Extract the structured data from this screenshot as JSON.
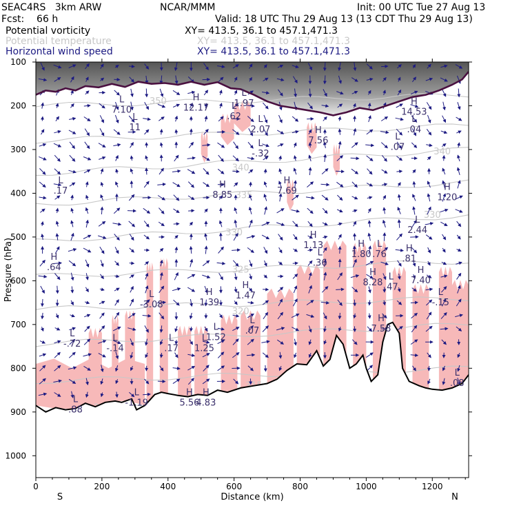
{
  "header": {
    "project": "SEAC4RS   3km ARW",
    "org": "NCAR/MMM",
    "init": "Init: 00 UTC Tue 27 Aug 13",
    "fcst": "Fcst:    66 h",
    "valid": "Valid: 18 UTC Thu 29 Aug 13 (13 CDT Thu 29 Aug 13)",
    "fields": [
      {
        "name": "Potential vorticity",
        "xy": "XY= 413.5, 36.1 to 457.1,471.3"
      },
      {
        "name": "Potential temperature",
        "xy": "XY= 413.5, 36.1 to 457.1,471.3"
      },
      {
        "name": "Horizontal wind speed",
        "xy": "XY= 413.5, 36.1 to 457.1,471.3"
      }
    ]
  },
  "colors": {
    "pv_fill": "#f7b9b9",
    "theta": "#c8c8c8",
    "wind": "#1c1a82",
    "label": "#3a2f6b",
    "tropopause": "#4a1040",
    "terrain": "#000000"
  },
  "chart_data": {
    "type": "cross-section",
    "xlabel": "Distance (km)",
    "ylabel": "Pressure (hPa)",
    "xlim": [
      0,
      1310
    ],
    "ylim": [
      1050,
      100
    ],
    "x_ticks": [
      0,
      200,
      400,
      600,
      800,
      1000,
      1200
    ],
    "y_ticks": [
      100,
      200,
      300,
      400,
      500,
      600,
      700,
      800,
      900,
      1000
    ],
    "end_labels": {
      "left": "S",
      "right": "N"
    },
    "grid": false,
    "theta_contours": [
      {
        "label": "310",
        "x": 200,
        "y": 890
      },
      {
        "label": "315",
        "x": 660,
        "y": 840
      },
      {
        "label": "320",
        "x": 620,
        "y": 670
      },
      {
        "label": "325",
        "x": 620,
        "y": 575
      },
      {
        "label": "330",
        "x": 600,
        "y": 490
      },
      {
        "label": "330",
        "x": 1200,
        "y": 450
      },
      {
        "label": "335",
        "x": 630,
        "y": 405
      },
      {
        "label": "340",
        "x": 620,
        "y": 342
      },
      {
        "label": "340",
        "x": 1230,
        "y": 305
      },
      {
        "label": "350",
        "x": 370,
        "y": 190
      }
    ],
    "extrema": [
      {
        "type": "H",
        "value": "12.17",
        "x": 485,
        "y": 195
      },
      {
        "type": "L",
        "value": "7.10",
        "x": 260,
        "y": 200
      },
      {
        "type": "L",
        "value": "11",
        "x": 300,
        "y": 240
      },
      {
        "type": "L",
        "value": "1.97",
        "x": 630,
        "y": 185
      },
      {
        "type": "L",
        "value": ".62",
        "x": 600,
        "y": 215
      },
      {
        "type": "L",
        "value": "2.07",
        "x": 680,
        "y": 245
      },
      {
        "type": "L",
        "value": "-.32",
        "x": 680,
        "y": 300
      },
      {
        "type": "H",
        "value": "7.56",
        "x": 855,
        "y": 270
      },
      {
        "type": "H",
        "value": "14.53",
        "x": 1145,
        "y": 205
      },
      {
        "type": "L",
        "value": ".04",
        "x": 1145,
        "y": 245
      },
      {
        "type": "L",
        "value": ".07",
        "x": 1095,
        "y": 285
      },
      {
        "type": "L",
        "value": ".17",
        "x": 75,
        "y": 385
      },
      {
        "type": "H",
        "value": "8.85",
        "x": 565,
        "y": 395
      },
      {
        "type": "H",
        "value": "7.69",
        "x": 760,
        "y": 385
      },
      {
        "type": "H",
        "value": "1.20",
        "x": 1245,
        "y": 400
      },
      {
        "type": "L",
        "value": "2.44",
        "x": 1155,
        "y": 475
      },
      {
        "type": "H",
        "value": "1.13",
        "x": 840,
        "y": 510
      },
      {
        "type": "L",
        "value": ".36",
        "x": 860,
        "y": 550
      },
      {
        "type": "H",
        "value": "1.80",
        "x": 985,
        "y": 530
      },
      {
        "type": "L",
        "value": ".76",
        "x": 1040,
        "y": 530
      },
      {
        "type": "H",
        "value": ".81",
        "x": 1130,
        "y": 540
      },
      {
        "type": "H",
        "value": "8.28",
        "x": 1020,
        "y": 595
      },
      {
        "type": "L",
        "value": ".47",
        "x": 1075,
        "y": 605
      },
      {
        "type": "H",
        "value": "7.40",
        "x": 1165,
        "y": 590
      },
      {
        "type": "L",
        "value": "-.15",
        "x": 1225,
        "y": 640
      },
      {
        "type": "H",
        "value": ".64",
        "x": 55,
        "y": 560
      },
      {
        "type": "L",
        "value": "-3.08",
        "x": 350,
        "y": 645
      },
      {
        "type": "H",
        "value": "1.39",
        "x": 525,
        "y": 640
      },
      {
        "type": "H",
        "value": "1.47",
        "x": 635,
        "y": 625
      },
      {
        "type": "L",
        "value": ".07",
        "x": 655,
        "y": 705
      },
      {
        "type": "L",
        "value": "1.52",
        "x": 545,
        "y": 720
      },
      {
        "type": "L",
        "value": "-.72",
        "x": 110,
        "y": 735
      },
      {
        "type": "L",
        "value": "-.14",
        "x": 240,
        "y": 745
      },
      {
        "type": "L",
        "value": ".17",
        "x": 410,
        "y": 745
      },
      {
        "type": "L",
        "value": "1.25",
        "x": 510,
        "y": 745
      },
      {
        "type": "H",
        "value": "7.58",
        "x": 1045,
        "y": 700
      },
      {
        "type": "L",
        "value": ".88",
        "x": 120,
        "y": 885
      },
      {
        "type": "L",
        "value": "-1.19",
        "x": 305,
        "y": 870
      },
      {
        "type": "H",
        "value": "5.56",
        "x": 465,
        "y": 870
      },
      {
        "type": "H",
        "value": "4.83",
        "x": 515,
        "y": 870
      },
      {
        "type": "L",
        "value": ".08",
        "x": 1275,
        "y": 825
      }
    ],
    "terrain_hpa": [
      [
        0,
        885
      ],
      [
        30,
        900
      ],
      [
        60,
        890
      ],
      [
        90,
        895
      ],
      [
        120,
        892
      ],
      [
        150,
        880
      ],
      [
        180,
        888
      ],
      [
        210,
        878
      ],
      [
        240,
        875
      ],
      [
        260,
        878
      ],
      [
        290,
        870
      ],
      [
        305,
        895
      ],
      [
        330,
        885
      ],
      [
        360,
        860
      ],
      [
        380,
        855
      ],
      [
        400,
        858
      ],
      [
        430,
        862
      ],
      [
        460,
        865
      ],
      [
        490,
        860
      ],
      [
        520,
        862
      ],
      [
        550,
        850
      ],
      [
        580,
        855
      ],
      [
        620,
        845
      ],
      [
        660,
        840
      ],
      [
        700,
        835
      ],
      [
        730,
        825
      ],
      [
        760,
        805
      ],
      [
        790,
        790
      ],
      [
        820,
        792
      ],
      [
        850,
        760
      ],
      [
        870,
        795
      ],
      [
        890,
        780
      ],
      [
        910,
        725
      ],
      [
        930,
        745
      ],
      [
        950,
        800
      ],
      [
        970,
        790
      ],
      [
        990,
        770
      ],
      [
        1000,
        800
      ],
      [
        1015,
        830
      ],
      [
        1035,
        815
      ],
      [
        1050,
        740
      ],
      [
        1065,
        700
      ],
      [
        1080,
        695
      ],
      [
        1100,
        720
      ],
      [
        1110,
        800
      ],
      [
        1130,
        830
      ],
      [
        1160,
        840
      ],
      [
        1180,
        845
      ],
      [
        1200,
        848
      ],
      [
        1230,
        850
      ],
      [
        1260,
        845
      ],
      [
        1290,
        835
      ],
      [
        1310,
        815
      ]
    ],
    "tropopause_hpa": [
      [
        0,
        175
      ],
      [
        30,
        165
      ],
      [
        60,
        168
      ],
      [
        90,
        160
      ],
      [
        120,
        165
      ],
      [
        150,
        155
      ],
      [
        190,
        158
      ],
      [
        230,
        150
      ],
      [
        270,
        157
      ],
      [
        310,
        145
      ],
      [
        350,
        150
      ],
      [
        390,
        148
      ],
      [
        430,
        152
      ],
      [
        470,
        145
      ],
      [
        510,
        152
      ],
      [
        550,
        146
      ],
      [
        590,
        160
      ],
      [
        620,
        162
      ],
      [
        660,
        175
      ],
      [
        700,
        190
      ],
      [
        740,
        200
      ],
      [
        780,
        205
      ],
      [
        820,
        210
      ],
      [
        860,
        215
      ],
      [
        900,
        222
      ],
      [
        940,
        215
      ],
      [
        980,
        205
      ],
      [
        1020,
        210
      ],
      [
        1060,
        200
      ],
      [
        1100,
        190
      ],
      [
        1140,
        180
      ],
      [
        1180,
        175
      ],
      [
        1220,
        165
      ],
      [
        1260,
        152
      ],
      [
        1290,
        140
      ],
      [
        1310,
        122
      ]
    ],
    "pv_blobs": [
      {
        "x": [
          0,
          330
        ],
        "top": 790
      },
      {
        "x": [
          160,
          200
        ],
        "top": 720
      },
      {
        "x": [
          230,
          250
        ],
        "top": 690
      },
      {
        "x": [
          270,
          300
        ],
        "top": 680
      },
      {
        "x": [
          335,
          355
        ],
        "top": 570
      },
      {
        "x": [
          375,
          400
        ],
        "top": 560
      },
      {
        "x": [
          430,
          470
        ],
        "top": 715
      },
      {
        "x": [
          480,
          520
        ],
        "top": 715
      },
      {
        "x": [
          560,
          610
        ],
        "top": 690
      },
      {
        "x": [
          620,
          680
        ],
        "top": 680
      },
      {
        "x": [
          700,
          780
        ],
        "top": 630
      },
      {
        "x": [
          790,
          860
        ],
        "top": 575
      },
      {
        "x": [
          870,
          940
        ],
        "top": 520
      },
      {
        "x": [
          960,
          1000
        ],
        "top": 525
      },
      {
        "x": [
          1020,
          1060
        ],
        "top": 520
      },
      {
        "x": [
          1080,
          1120
        ],
        "top": 580
      },
      {
        "x": [
          1140,
          1190
        ],
        "top": 620
      },
      {
        "x": [
          1220,
          1260
        ],
        "top": 580
      },
      {
        "x": [
          1260,
          1310
        ],
        "top": 610
      },
      {
        "x": [
          500,
          520
        ],
        "top": 270
      },
      {
        "x": [
          560,
          600
        ],
        "top": 230
      },
      {
        "x": [
          600,
          650
        ],
        "top": 200
      },
      {
        "x": [
          760,
          780
        ],
        "top": 380
      },
      {
        "x": [
          820,
          850
        ],
        "top": 250
      },
      {
        "x": [
          900,
          920
        ],
        "top": 300
      }
    ]
  }
}
